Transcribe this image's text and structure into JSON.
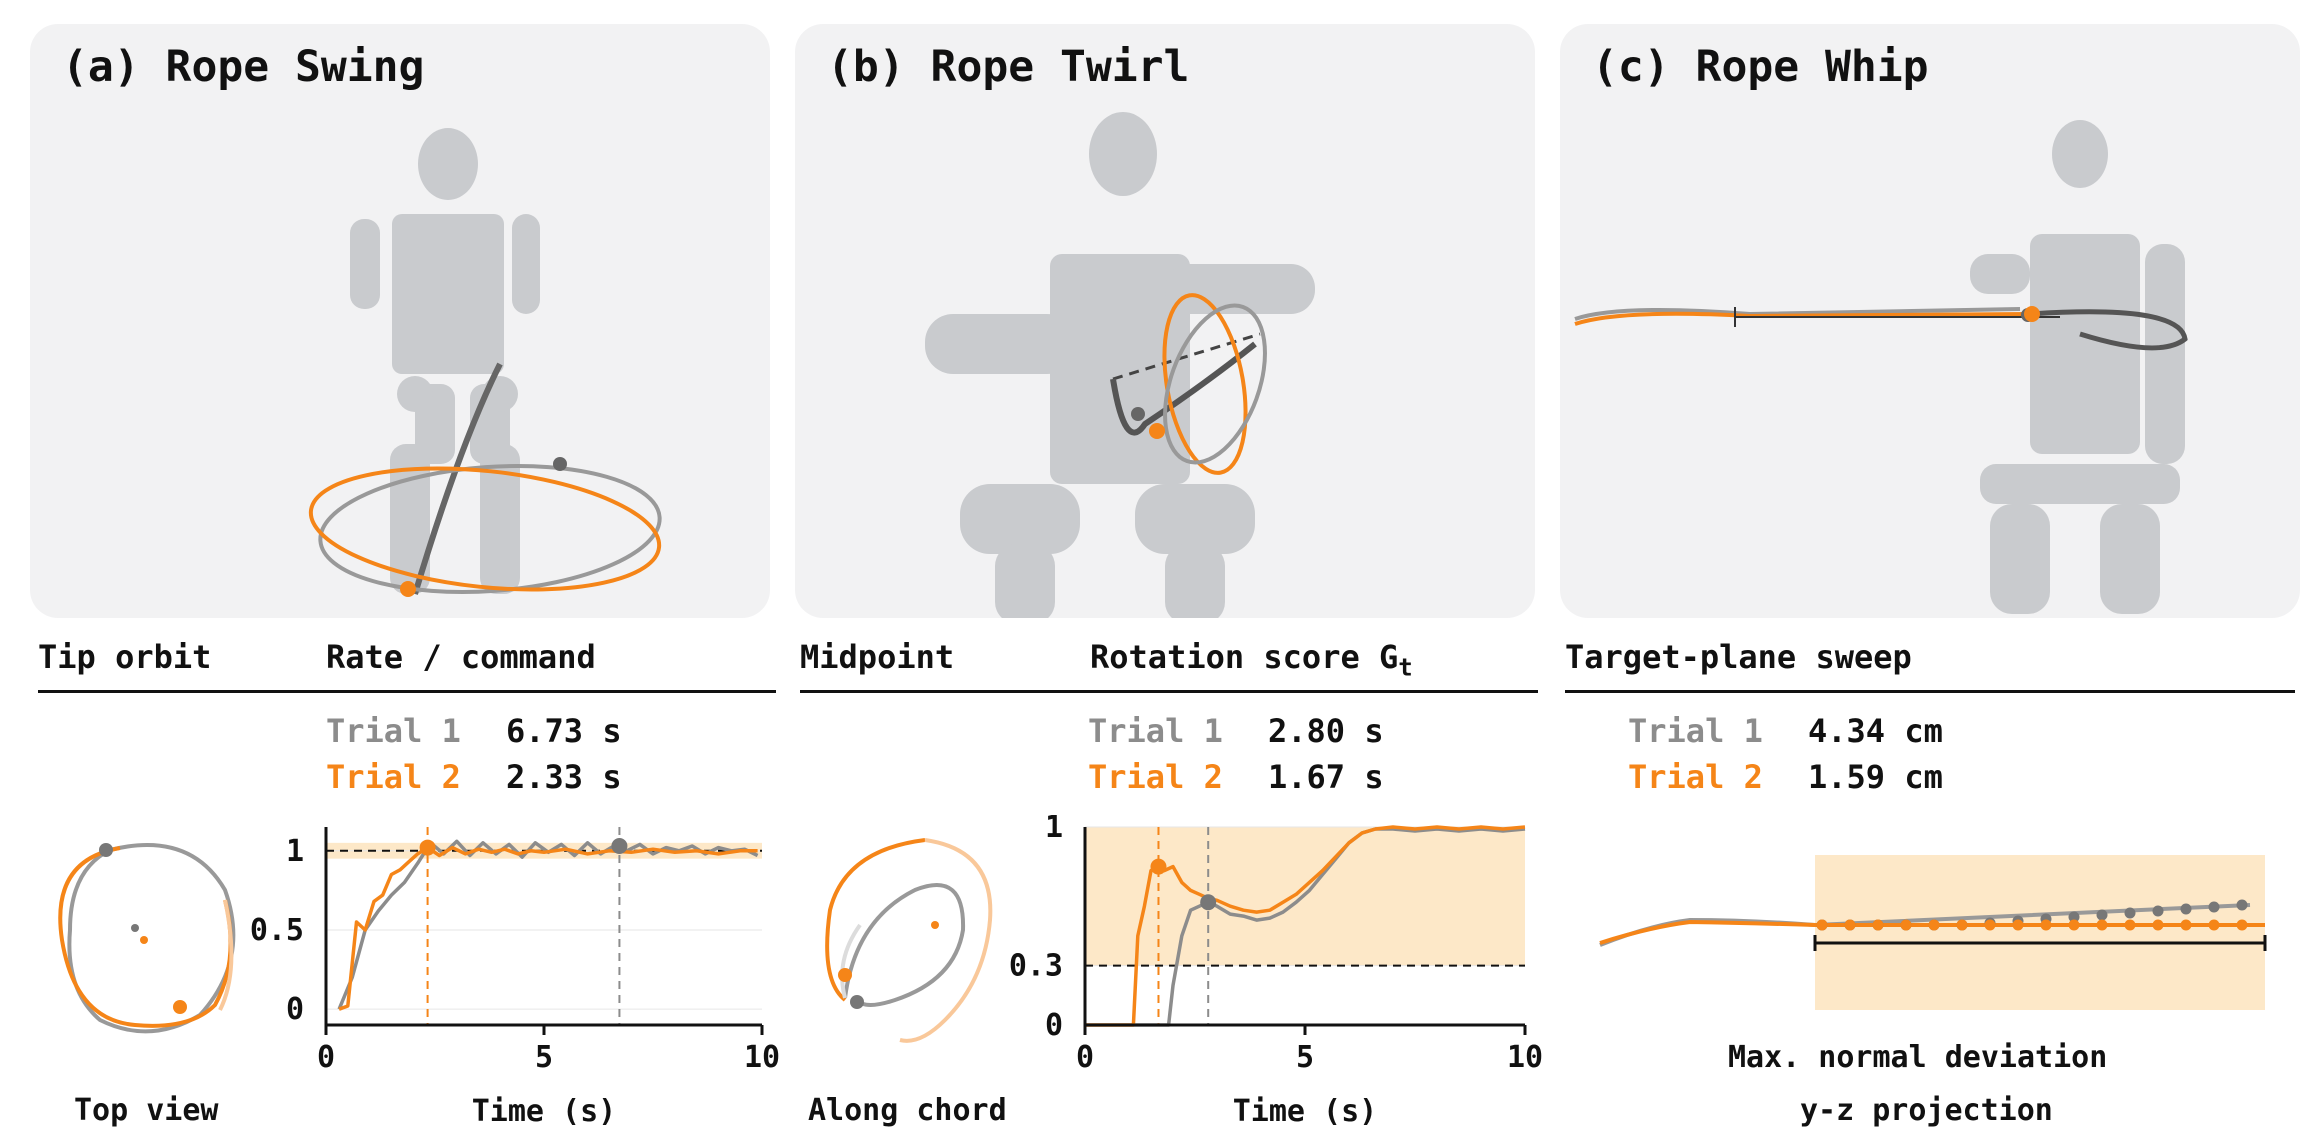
{
  "panels": [
    {
      "title": "(a) Rope Swing"
    },
    {
      "title": "(b) Rope Twirl"
    },
    {
      "title": "(c) Rope Whip"
    }
  ],
  "sections": {
    "a_left": "Tip orbit",
    "a_right": "Rate / command",
    "b_left": "Midpoint",
    "b_right": "Rotation score G",
    "b_right_sub": "t",
    "c": "Target-plane sweep"
  },
  "captions": {
    "a_top_view": "Top view",
    "b_along_chord": "Along chord",
    "c_max_dev": "Max. normal deviation",
    "c_projection": "y-z projection"
  },
  "colors": {
    "trial1": "#8c8c8c",
    "trial2": "#f58518",
    "band": "#fde8c8"
  },
  "chart_data": [
    {
      "type": "line",
      "panel": "a",
      "title": "Rate / command",
      "xlabel": "Time (s)",
      "ylabel": "",
      "xlim": [
        0,
        10
      ],
      "ylim": [
        -0.1,
        1.15
      ],
      "xticks": [
        "0",
        "5",
        "10"
      ],
      "yticks": [
        "0",
        "0.5",
        "1"
      ],
      "ytick_values": [
        0,
        0.5,
        1
      ],
      "xtick_values": [
        0,
        5,
        10
      ],
      "reference_line": 1,
      "band": [
        0.95,
        1.05
      ],
      "legend": [
        {
          "name": "Trial 1",
          "value": "6.73 s"
        },
        {
          "name": "Trial 2",
          "value": "2.33 s"
        }
      ],
      "markers": [
        {
          "series": "Trial 1",
          "x": 6.73
        },
        {
          "series": "Trial 2",
          "x": 2.33
        }
      ],
      "series": [
        {
          "name": "Trial 1",
          "x": [
            0.3,
            0.6,
            0.9,
            1.2,
            1.5,
            1.8,
            2.1,
            2.4,
            2.7,
            3.0,
            3.3,
            3.6,
            3.9,
            4.2,
            4.5,
            4.8,
            5.1,
            5.4,
            5.7,
            6.0,
            6.3,
            6.6,
            6.9,
            7.2,
            7.5,
            7.8,
            8.1,
            8.4,
            8.7,
            9.0,
            9.3,
            9.6,
            9.9
          ],
          "y": [
            0.0,
            0.2,
            0.5,
            0.62,
            0.72,
            0.8,
            0.92,
            1.05,
            0.98,
            1.06,
            0.97,
            1.05,
            0.98,
            1.04,
            0.96,
            1.05,
            0.99,
            1.04,
            0.97,
            1.05,
            0.98,
            1.03,
            1.0,
            1.04,
            0.98,
            1.02,
            1.0,
            1.03,
            0.98,
            1.02,
            1.0,
            1.01,
            0.97
          ]
        },
        {
          "name": "Trial 2",
          "x": [
            0.3,
            0.5,
            0.7,
            0.9,
            1.1,
            1.3,
            1.5,
            1.7,
            1.9,
            2.1,
            2.33,
            2.6,
            2.9,
            3.2,
            3.5,
            3.8,
            4.1,
            4.4,
            4.7,
            5.0,
            5.5,
            6.0,
            6.5,
            7.0,
            7.5,
            8.0,
            8.5,
            9.0,
            9.5,
            9.9
          ],
          "y": [
            0.0,
            0.02,
            0.55,
            0.5,
            0.68,
            0.72,
            0.85,
            0.88,
            0.93,
            0.98,
            1.02,
            0.97,
            1.02,
            0.98,
            1.01,
            0.99,
            1.01,
            0.98,
            1.0,
            0.99,
            1.01,
            0.98,
            1.0,
            0.99,
            1.01,
            0.99,
            1.0,
            0.98,
            1.0,
            1.0
          ]
        }
      ]
    },
    {
      "type": "line",
      "panel": "b",
      "title": "Rotation score Gt",
      "xlabel": "Time (s)",
      "ylabel": "",
      "xlim": [
        0,
        10
      ],
      "ylim": [
        0,
        1
      ],
      "xticks": [
        "0",
        "5",
        "10"
      ],
      "yticks": [
        "0",
        "0.3",
        "1"
      ],
      "ytick_values": [
        0,
        0.3,
        1
      ],
      "xtick_values": [
        0,
        5,
        10
      ],
      "reference_line": 0.3,
      "band": [
        0.3,
        1.0
      ],
      "legend": [
        {
          "name": "Trial 1",
          "value": "2.80 s"
        },
        {
          "name": "Trial 2",
          "value": "1.67 s"
        }
      ],
      "markers": [
        {
          "series": "Trial 1",
          "x": 2.8
        },
        {
          "series": "Trial 2",
          "x": 1.67
        }
      ],
      "series": [
        {
          "name": "Trial 1",
          "x": [
            0,
            1.9,
            2.0,
            2.2,
            2.4,
            2.6,
            2.8,
            3.0,
            3.3,
            3.6,
            3.9,
            4.2,
            4.5,
            4.8,
            5.1,
            5.4,
            5.7,
            6.0,
            6.3,
            6.6,
            7.0,
            7.5,
            8.0,
            8.5,
            9.0,
            9.5,
            10.0
          ],
          "y": [
            0,
            0,
            0.2,
            0.45,
            0.58,
            0.6,
            0.62,
            0.6,
            0.56,
            0.55,
            0.53,
            0.54,
            0.57,
            0.62,
            0.68,
            0.76,
            0.84,
            0.92,
            0.97,
            0.99,
            0.99,
            0.98,
            0.99,
            0.98,
            0.99,
            0.98,
            0.99
          ]
        },
        {
          "name": "Trial 2",
          "x": [
            0,
            1.1,
            1.2,
            1.35,
            1.5,
            1.67,
            1.8,
            2.0,
            2.2,
            2.4,
            2.6,
            2.8,
            3.0,
            3.3,
            3.6,
            3.9,
            4.2,
            4.5,
            4.8,
            5.1,
            5.4,
            5.7,
            6.0,
            6.3,
            6.6,
            7.0,
            7.5,
            8.0,
            8.5,
            9.0,
            9.5,
            10.0
          ],
          "y": [
            0,
            0,
            0.45,
            0.6,
            0.78,
            0.8,
            0.78,
            0.8,
            0.72,
            0.68,
            0.66,
            0.64,
            0.63,
            0.6,
            0.58,
            0.57,
            0.58,
            0.62,
            0.66,
            0.72,
            0.78,
            0.85,
            0.92,
            0.97,
            0.99,
            1.0,
            0.99,
            1.0,
            0.99,
            1.0,
            0.99,
            1.0
          ]
        }
      ]
    },
    {
      "type": "scatter",
      "panel": "c",
      "title": "Max. normal deviation",
      "xlabel": "y-z projection",
      "legend": [
        {
          "name": "Trial 1",
          "value": "4.34 cm"
        },
        {
          "name": "Trial 2",
          "value": "1.59 cm"
        }
      ]
    }
  ]
}
